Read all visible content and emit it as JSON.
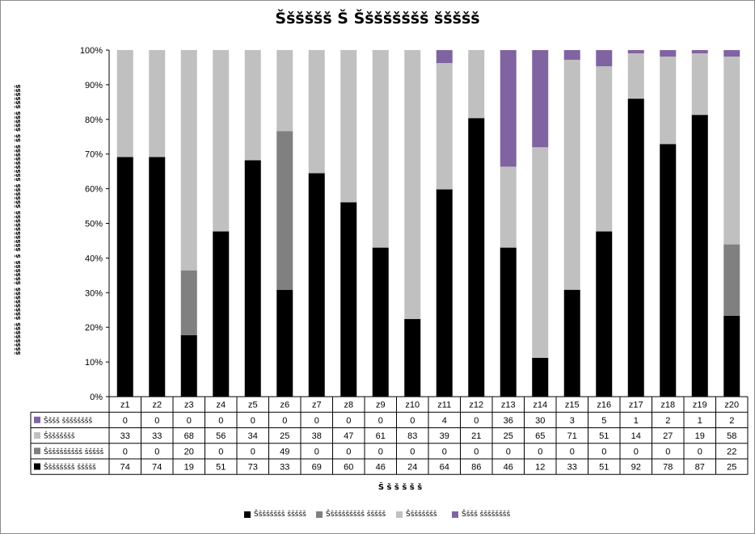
{
  "chart_data": {
    "type": "bar",
    "stacked": "percent",
    "title": "Šššššš Š Šššššššš ššššš",
    "xlabel": "Š š š š š š",
    "ylabel": "šššššššš šššššššš šššššš š šššššššššš šššššš ššššššššš šš ššššš šššššš",
    "ylim": [
      0,
      100
    ],
    "y_ticks": [
      "0%",
      "10%",
      "20%",
      "30%",
      "40%",
      "50%",
      "60%",
      "70%",
      "80%",
      "90%",
      "100%"
    ],
    "grid": false,
    "legend_position": "bottom",
    "data_table": true,
    "categories": [
      "z1",
      "z2",
      "z3",
      "z4",
      "z5",
      "z6",
      "z7",
      "z8",
      "z9",
      "z10",
      "z11",
      "z12",
      "z13",
      "z14",
      "z15",
      "z16",
      "z17",
      "z18",
      "z19",
      "z20"
    ],
    "series": [
      {
        "name": "Šššššššš ššššš",
        "color": "#000000",
        "values": [
          74,
          74,
          19,
          51,
          73,
          33,
          69,
          60,
          46,
          24,
          64,
          86,
          46,
          12,
          33,
          51,
          92,
          78,
          87,
          25
        ]
      },
      {
        "name": "Šššššššššš ššššš",
        "color": "#808080",
        "values": [
          0,
          0,
          20,
          0,
          0,
          49,
          0,
          0,
          0,
          0,
          0,
          0,
          0,
          0,
          0,
          0,
          0,
          0,
          0,
          22
        ]
      },
      {
        "name": "Šššššššš",
        "color": "#c0c0c0",
        "values": [
          33,
          33,
          68,
          56,
          34,
          25,
          38,
          47,
          61,
          83,
          39,
          21,
          25,
          65,
          71,
          51,
          14,
          27,
          19,
          58
        ]
      },
      {
        "name": "Šššš šššššššš",
        "color": "#8064a2",
        "values": [
          0,
          0,
          0,
          0,
          0,
          0,
          0,
          0,
          0,
          0,
          4,
          0,
          36,
          30,
          3,
          5,
          1,
          2,
          1,
          2
        ]
      }
    ],
    "table_row_order": [
      3,
      2,
      1,
      0
    ],
    "legend_order": [
      0,
      1,
      2,
      3
    ]
  }
}
